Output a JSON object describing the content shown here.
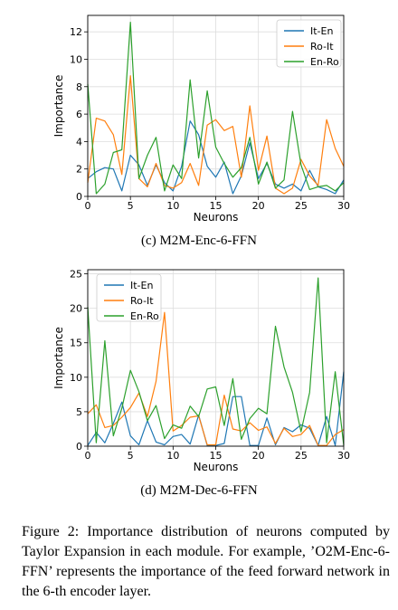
{
  "chart_data": [
    {
      "type": "line",
      "xlabel": "Neurons",
      "ylabel": "Importance",
      "xlim": [
        0,
        30
      ],
      "ylim": [
        0,
        13.2
      ],
      "xticks": [
        0,
        5,
        10,
        15,
        20,
        25,
        30
      ],
      "yticks": [
        0,
        2,
        4,
        6,
        8,
        10,
        12
      ],
      "grid": true,
      "legend_position": "top-right",
      "x": [
        0,
        1,
        2,
        3,
        4,
        5,
        6,
        7,
        8,
        9,
        10,
        11,
        12,
        13,
        14,
        15,
        16,
        17,
        18,
        19,
        20,
        21,
        22,
        23,
        24,
        25,
        26,
        27,
        28,
        29,
        30
      ],
      "series": [
        {
          "name": "It-En",
          "color": "#1f77b4",
          "values": [
            1.3,
            1.8,
            2.1,
            2.0,
            0.4,
            3.0,
            2.3,
            0.8,
            2.3,
            1.0,
            0.4,
            2.2,
            5.5,
            4.5,
            2.2,
            1.4,
            2.5,
            0.2,
            1.5,
            3.9,
            1.3,
            2.4,
            0.9,
            0.6,
            0.9,
            0.4,
            1.9,
            0.7,
            0.5,
            0.2,
            1.2
          ]
        },
        {
          "name": "Ro-It",
          "color": "#ff7f0e",
          "values": [
            1.0,
            5.7,
            5.5,
            4.5,
            1.6,
            8.8,
            1.3,
            0.7,
            2.4,
            0.8,
            0.6,
            1.0,
            2.4,
            0.8,
            5.2,
            5.6,
            4.8,
            5.1,
            1.4,
            6.6,
            1.9,
            4.4,
            0.6,
            0.2,
            0.6,
            2.7,
            1.5,
            0.8,
            5.6,
            3.5,
            2.2
          ]
        },
        {
          "name": "En-Ro",
          "color": "#2ca02c",
          "values": [
            8.2,
            0.2,
            0.9,
            3.2,
            3.4,
            12.7,
            1.3,
            3.0,
            4.3,
            0.4,
            2.3,
            1.3,
            8.5,
            2.8,
            7.7,
            3.6,
            2.4,
            1.4,
            2.1,
            4.3,
            0.9,
            2.5,
            0.6,
            1.2,
            6.2,
            2.3,
            0.5,
            0.7,
            0.8,
            0.4,
            1.0
          ]
        }
      ]
    },
    {
      "type": "line",
      "xlabel": "Neurons",
      "ylabel": "Importance",
      "xlim": [
        0,
        30
      ],
      "ylim": [
        0,
        25.6
      ],
      "xticks": [
        0,
        5,
        10,
        15,
        20,
        25,
        30
      ],
      "yticks": [
        0,
        5,
        10,
        15,
        20,
        25
      ],
      "grid": true,
      "legend_position": "top-left",
      "x": [
        0,
        1,
        2,
        3,
        4,
        5,
        6,
        7,
        8,
        9,
        10,
        11,
        12,
        13,
        14,
        15,
        16,
        17,
        18,
        19,
        20,
        21,
        22,
        23,
        24,
        25,
        26,
        27,
        28,
        29,
        30
      ],
      "series": [
        {
          "name": "It-En",
          "color": "#1f77b4",
          "values": [
            0.1,
            2.0,
            0.5,
            3.3,
            6.4,
            1.5,
            0.2,
            3.7,
            0.6,
            0.2,
            1.4,
            1.7,
            0.3,
            4.5,
            0.1,
            0.1,
            0.4,
            7.2,
            7.2,
            0.1,
            0.1,
            4.1,
            0.2,
            2.7,
            2.1,
            3.1,
            2.6,
            0.1,
            4.3,
            0.1,
            10.8
          ]
        },
        {
          "name": "Ro-It",
          "color": "#ff7f0e",
          "values": [
            4.7,
            6.0,
            2.7,
            3.0,
            4.2,
            5.6,
            7.7,
            4.3,
            9.4,
            19.4,
            2.2,
            3.0,
            4.2,
            4.4,
            0.2,
            0.2,
            7.4,
            2.5,
            2.2,
            3.4,
            2.3,
            2.8,
            0.4,
            2.6,
            1.4,
            1.7,
            3.0,
            0.1,
            0.1,
            1.7,
            2.4
          ]
        },
        {
          "name": "En-Ro",
          "color": "#2ca02c",
          "values": [
            20.2,
            0.5,
            15.3,
            1.5,
            5.5,
            11.0,
            7.9,
            3.7,
            5.9,
            1.1,
            3.1,
            2.6,
            5.8,
            4.3,
            8.3,
            8.6,
            3.0,
            9.8,
            1.0,
            4.0,
            5.5,
            4.7,
            17.4,
            11.5,
            7.8,
            2.1,
            7.8,
            24.4,
            0.5,
            10.8,
            0.1
          ]
        }
      ]
    }
  ],
  "captions": {
    "sub1": "(c) M2M-Enc-6-FFN",
    "sub2": "(d) M2M-Dec-6-FFN",
    "figure": "Figure 2: Importance distribution of neurons computed by Taylor Expansion in each module. For example, ’O2M-Enc-6-FFN’ represents the importance of the feed forward network in the 6-th encoder layer."
  }
}
